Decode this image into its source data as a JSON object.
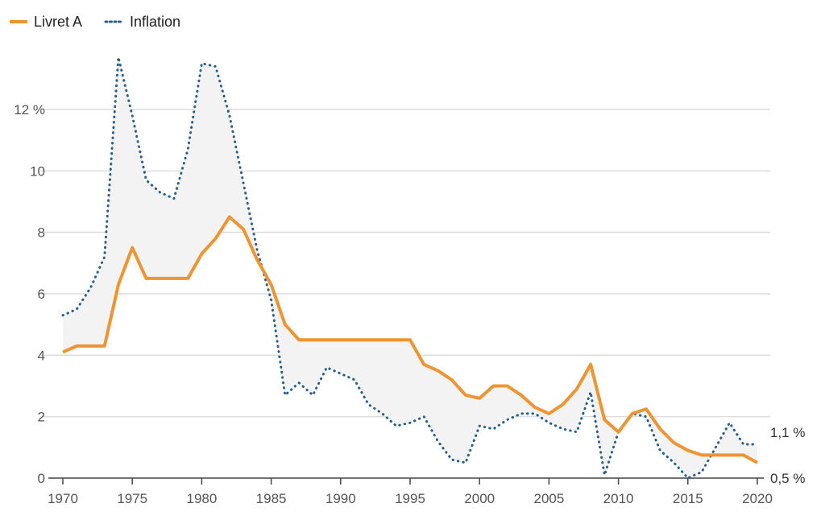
{
  "chart_data": {
    "type": "line",
    "title": "",
    "xlabel": "",
    "ylabel": "",
    "xlim": [
      1970,
      2020
    ],
    "ylim": [
      0,
      12
    ],
    "grid": true,
    "legend_placement": "top-left",
    "y_ticks": [
      {
        "value": 0,
        "label": "0"
      },
      {
        "value": 2,
        "label": "2"
      },
      {
        "value": 4,
        "label": "4"
      },
      {
        "value": 6,
        "label": "6"
      },
      {
        "value": 8,
        "label": "8"
      },
      {
        "value": 10,
        "label": "10"
      },
      {
        "value": 12,
        "label": "12 %"
      }
    ],
    "x_ticks": [
      1970,
      1975,
      1980,
      1985,
      1990,
      1995,
      2000,
      2005,
      2010,
      2015,
      2020
    ],
    "x_tick_labels": [
      "1970",
      "1975",
      "1980",
      "1985",
      "1990",
      "1995",
      "2000",
      "2005",
      "2010",
      "2015",
      "2020"
    ],
    "x": [
      1970,
      1971,
      1972,
      1973,
      1974,
      1975,
      1976,
      1977,
      1978,
      1979,
      1980,
      1981,
      1982,
      1983,
      1984,
      1985,
      1986,
      1987,
      1988,
      1989,
      1990,
      1991,
      1992,
      1993,
      1994,
      1995,
      1996,
      1997,
      1998,
      1999,
      2000,
      2001,
      2002,
      2003,
      2004,
      2005,
      2006,
      2007,
      2008,
      2009,
      2010,
      2011,
      2012,
      2013,
      2014,
      2015,
      2016,
      2017,
      2018,
      2019,
      2020
    ],
    "series": [
      {
        "name": "Livret A",
        "color": "#ee9433",
        "style": "solid",
        "values": [
          4.1,
          4.3,
          4.3,
          4.3,
          6.3,
          7.5,
          6.5,
          6.5,
          6.5,
          6.5,
          7.3,
          7.8,
          8.5,
          8.1,
          7.1,
          6.3,
          5.0,
          4.5,
          4.5,
          4.5,
          4.5,
          4.5,
          4.5,
          4.5,
          4.5,
          4.5,
          3.7,
          3.5,
          3.2,
          2.7,
          2.6,
          3.0,
          3.0,
          2.7,
          2.3,
          2.1,
          2.4,
          2.9,
          3.7,
          1.9,
          1.5,
          2.1,
          2.25,
          1.6,
          1.15,
          0.9,
          0.75,
          0.75,
          0.75,
          0.75,
          0.5
        ]
      },
      {
        "name": "Inflation",
        "color": "#2a5f8a",
        "style": "dotted",
        "values": [
          5.3,
          5.5,
          6.2,
          7.2,
          13.7,
          11.8,
          9.7,
          9.3,
          9.1,
          10.7,
          13.5,
          13.4,
          11.8,
          9.6,
          7.4,
          5.8,
          2.7,
          3.1,
          2.7,
          3.6,
          3.4,
          3.2,
          2.4,
          2.1,
          1.7,
          1.8,
          2.0,
          1.2,
          0.6,
          0.5,
          1.7,
          1.6,
          1.9,
          2.1,
          2.1,
          1.8,
          1.6,
          1.5,
          2.8,
          0.1,
          1.5,
          2.1,
          2.0,
          0.9,
          0.5,
          0.0,
          0.2,
          1.0,
          1.8,
          1.1,
          1.1
        ]
      }
    ],
    "annotations": [
      {
        "series": "Inflation",
        "text": "1,1 %"
      },
      {
        "series": "Livret A",
        "text": "0,5 %"
      }
    ],
    "fill_between_color": "#f3f3f3"
  }
}
